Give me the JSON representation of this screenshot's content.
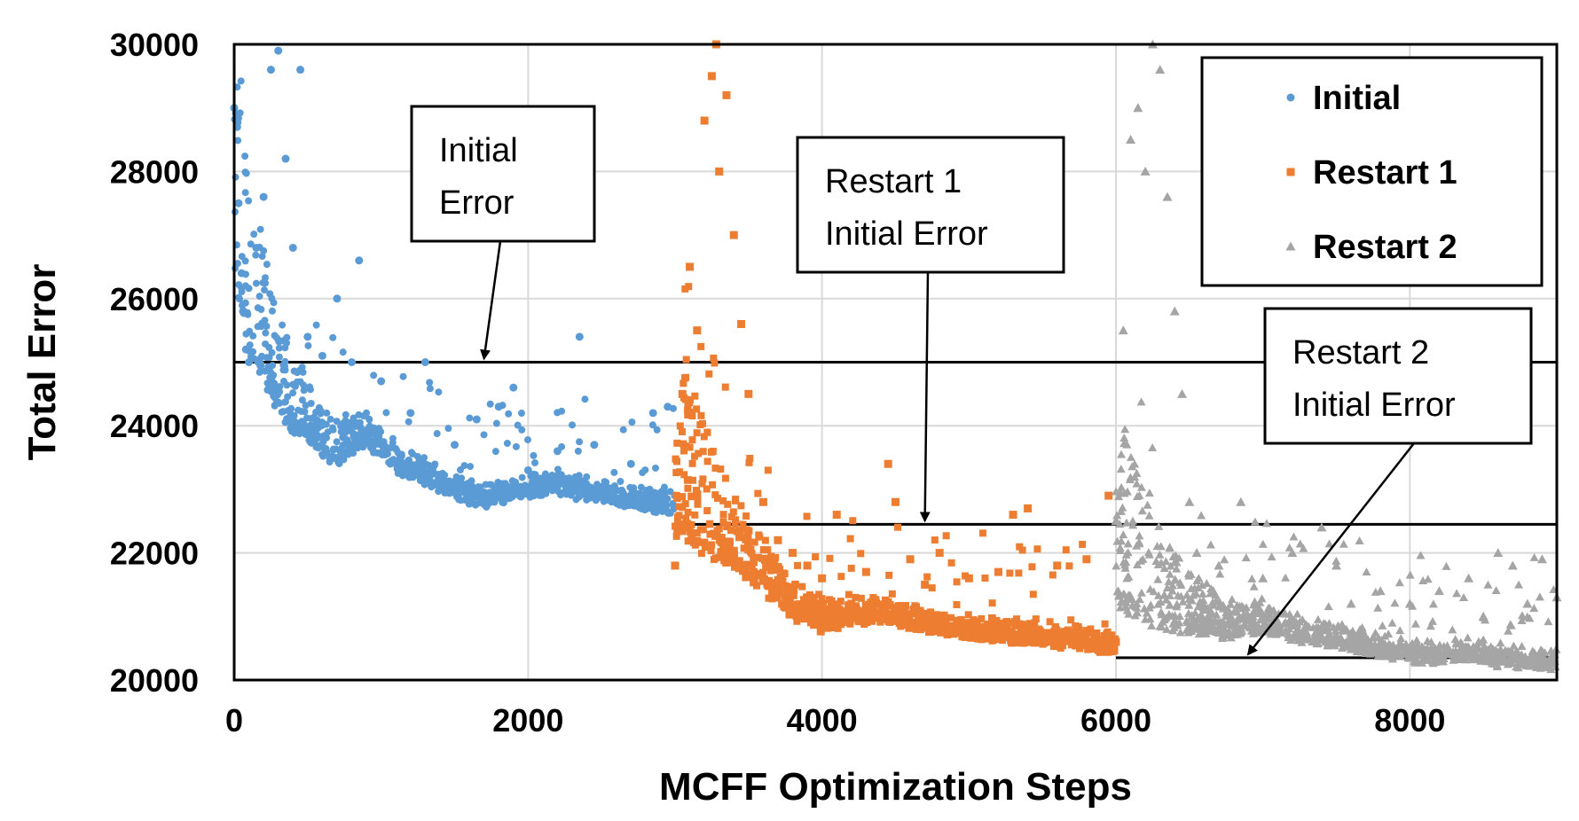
{
  "chart_data": {
    "type": "scatter",
    "xlabel": "MCFF Optimization Steps",
    "ylabel": "Total Error",
    "xlim": [
      0,
      9000
    ],
    "ylim": [
      20000,
      30000
    ],
    "xticks": [
      0,
      2000,
      4000,
      6000,
      8000
    ],
    "yticks": [
      20000,
      22000,
      24000,
      26000,
      28000,
      30000
    ],
    "grid": true,
    "legend_position": "top-right",
    "series": [
      {
        "name": "Initial",
        "marker": "circle",
        "color": "#5b9bd5",
        "x_range": [
          0,
          3000
        ],
        "values": [
          [
            0,
            29000
          ],
          [
            20,
            28700
          ],
          [
            30,
            27500
          ],
          [
            50,
            26400
          ],
          [
            60,
            25800
          ],
          [
            80,
            25200
          ],
          [
            100,
            25000
          ],
          [
            150,
            26800
          ],
          [
            200,
            27600
          ],
          [
            250,
            29600
          ],
          [
            300,
            29900
          ],
          [
            350,
            28200
          ],
          [
            400,
            26800
          ],
          [
            450,
            29600
          ],
          [
            500,
            25400
          ],
          [
            600,
            25100
          ],
          [
            700,
            26000
          ],
          [
            800,
            25000
          ],
          [
            850,
            26600
          ],
          [
            1000,
            24700
          ],
          [
            1200,
            24200
          ],
          [
            1300,
            25000
          ],
          [
            1500,
            23700
          ],
          [
            1650,
            24100
          ],
          [
            1800,
            24300
          ],
          [
            1900,
            24600
          ],
          [
            2000,
            23300
          ],
          [
            2200,
            23600
          ],
          [
            2350,
            25400
          ],
          [
            2450,
            23700
          ],
          [
            2700,
            23400
          ],
          [
            2850,
            24200
          ],
          [
            2950,
            24300
          ],
          [
            3000,
            22900
          ]
        ],
        "trend": [
          [
            0,
            26500
          ],
          [
            100,
            25200
          ],
          [
            200,
            24800
          ],
          [
            300,
            24300
          ],
          [
            400,
            24000
          ],
          [
            500,
            23900
          ],
          [
            600,
            23600
          ],
          [
            700,
            23500
          ],
          [
            800,
            23700
          ],
          [
            900,
            23800
          ],
          [
            1000,
            23600
          ],
          [
            1100,
            23400
          ],
          [
            1200,
            23300
          ],
          [
            1300,
            23200
          ],
          [
            1400,
            23100
          ],
          [
            1500,
            23000
          ],
          [
            1600,
            22900
          ],
          [
            1700,
            22850
          ],
          [
            1800,
            22900
          ],
          [
            1900,
            22950
          ],
          [
            2000,
            23000
          ],
          [
            2100,
            23050
          ],
          [
            2200,
            23050
          ],
          [
            2300,
            23000
          ],
          [
            2400,
            22950
          ],
          [
            2500,
            22950
          ],
          [
            2600,
            22900
          ],
          [
            2700,
            22850
          ],
          [
            2800,
            22800
          ],
          [
            2900,
            22750
          ],
          [
            3000,
            22750
          ]
        ]
      },
      {
        "name": "Restart 1",
        "marker": "square",
        "color": "#ed7d31",
        "x_range": [
          3000,
          6000
        ],
        "values": [
          [
            3000,
            21800
          ],
          [
            3050,
            24500
          ],
          [
            3100,
            26500
          ],
          [
            3150,
            25500
          ],
          [
            3200,
            28800
          ],
          [
            3250,
            29500
          ],
          [
            3280,
            30000
          ],
          [
            3300,
            28000
          ],
          [
            3350,
            29200
          ],
          [
            3400,
            27000
          ],
          [
            3450,
            25600
          ],
          [
            3500,
            24500
          ],
          [
            3600,
            22800
          ],
          [
            3700,
            22200
          ],
          [
            3800,
            22000
          ],
          [
            3900,
            21800
          ],
          [
            4000,
            21600
          ],
          [
            4100,
            22600
          ],
          [
            4200,
            21200
          ],
          [
            4300,
            21700
          ],
          [
            4450,
            23400
          ],
          [
            4500,
            22800
          ],
          [
            4600,
            21900
          ],
          [
            4700,
            21500
          ],
          [
            4800,
            22000
          ],
          [
            5000,
            21600
          ],
          [
            5200,
            21700
          ],
          [
            5300,
            22600
          ],
          [
            5400,
            22700
          ],
          [
            5600,
            21800
          ],
          [
            5800,
            21900
          ],
          [
            5950,
            22900
          ],
          [
            6000,
            20600
          ]
        ],
        "trend": [
          [
            3000,
            22400
          ],
          [
            3100,
            22300
          ],
          [
            3200,
            22100
          ],
          [
            3300,
            22000
          ],
          [
            3400,
            21900
          ],
          [
            3500,
            21700
          ],
          [
            3600,
            21500
          ],
          [
            3700,
            21300
          ],
          [
            3800,
            21100
          ],
          [
            3900,
            21000
          ],
          [
            4000,
            20900
          ],
          [
            4100,
            20950
          ],
          [
            4200,
            21000
          ],
          [
            4300,
            21000
          ],
          [
            4400,
            21050
          ],
          [
            4500,
            21000
          ],
          [
            4600,
            20950
          ],
          [
            4700,
            20900
          ],
          [
            4800,
            20850
          ],
          [
            4900,
            20800
          ],
          [
            5000,
            20800
          ],
          [
            5100,
            20750
          ],
          [
            5200,
            20750
          ],
          [
            5300,
            20700
          ],
          [
            5400,
            20700
          ],
          [
            5500,
            20700
          ],
          [
            5600,
            20650
          ],
          [
            5700,
            20650
          ],
          [
            5800,
            20600
          ],
          [
            5900,
            20550
          ],
          [
            6000,
            20500
          ]
        ]
      },
      {
        "name": "Restart 2",
        "marker": "triangle",
        "color": "#a5a5a5",
        "x_range": [
          6000,
          9000
        ],
        "values": [
          [
            6000,
            22500
          ],
          [
            6050,
            25500
          ],
          [
            6100,
            28500
          ],
          [
            6150,
            29000
          ],
          [
            6200,
            28000
          ],
          [
            6250,
            30000
          ],
          [
            6300,
            29600
          ],
          [
            6350,
            27600
          ],
          [
            6400,
            25800
          ],
          [
            6450,
            24500
          ],
          [
            6500,
            22800
          ],
          [
            6550,
            22000
          ],
          [
            6700,
            21800
          ],
          [
            6850,
            22800
          ],
          [
            7000,
            21600
          ],
          [
            7200,
            22000
          ],
          [
            7400,
            22400
          ],
          [
            7500,
            21800
          ],
          [
            7600,
            21200
          ],
          [
            7800,
            21400
          ],
          [
            8000,
            21200
          ],
          [
            8200,
            21400
          ],
          [
            8400,
            21600
          ],
          [
            8500,
            21000
          ],
          [
            8600,
            22000
          ],
          [
            8700,
            21800
          ],
          [
            8800,
            21200
          ],
          [
            8900,
            21900
          ],
          [
            9000,
            21300
          ]
        ],
        "trend": [
          [
            6000,
            21300
          ],
          [
            6100,
            21100
          ],
          [
            6200,
            21000
          ],
          [
            6300,
            20950
          ],
          [
            6400,
            20900
          ],
          [
            6500,
            20850
          ],
          [
            6600,
            20850
          ],
          [
            6700,
            20800
          ],
          [
            6800,
            20800
          ],
          [
            6900,
            20850
          ],
          [
            7000,
            20850
          ],
          [
            7100,
            20800
          ],
          [
            7200,
            20750
          ],
          [
            7300,
            20700
          ],
          [
            7400,
            20700
          ],
          [
            7500,
            20650
          ],
          [
            7600,
            20600
          ],
          [
            7700,
            20550
          ],
          [
            7800,
            20500
          ],
          [
            7900,
            20450
          ],
          [
            8000,
            20400
          ],
          [
            8100,
            20400
          ],
          [
            8200,
            20400
          ],
          [
            8300,
            20450
          ],
          [
            8400,
            20450
          ],
          [
            8500,
            20400
          ],
          [
            8600,
            20350
          ],
          [
            8700,
            20350
          ],
          [
            8800,
            20300
          ],
          [
            8900,
            20300
          ],
          [
            9000,
            20300
          ]
        ]
      }
    ],
    "reference_lines": [
      {
        "y": 25000,
        "x_range": [
          0,
          9000
        ]
      },
      {
        "y": 22450,
        "x_range": [
          3000,
          9000
        ]
      },
      {
        "y": 20350,
        "x_range": [
          6000,
          9000
        ]
      }
    ],
    "annotations": [
      {
        "lines": [
          "Initial",
          "Error"
        ],
        "points_to": [
          1700,
          25000
        ]
      },
      {
        "lines": [
          "Restart 1",
          "Initial Error"
        ],
        "points_to": [
          4700,
          22450
        ]
      },
      {
        "lines": [
          "Restart 2",
          "Initial Error"
        ],
        "points_to": [
          6900,
          20350
        ]
      }
    ]
  }
}
